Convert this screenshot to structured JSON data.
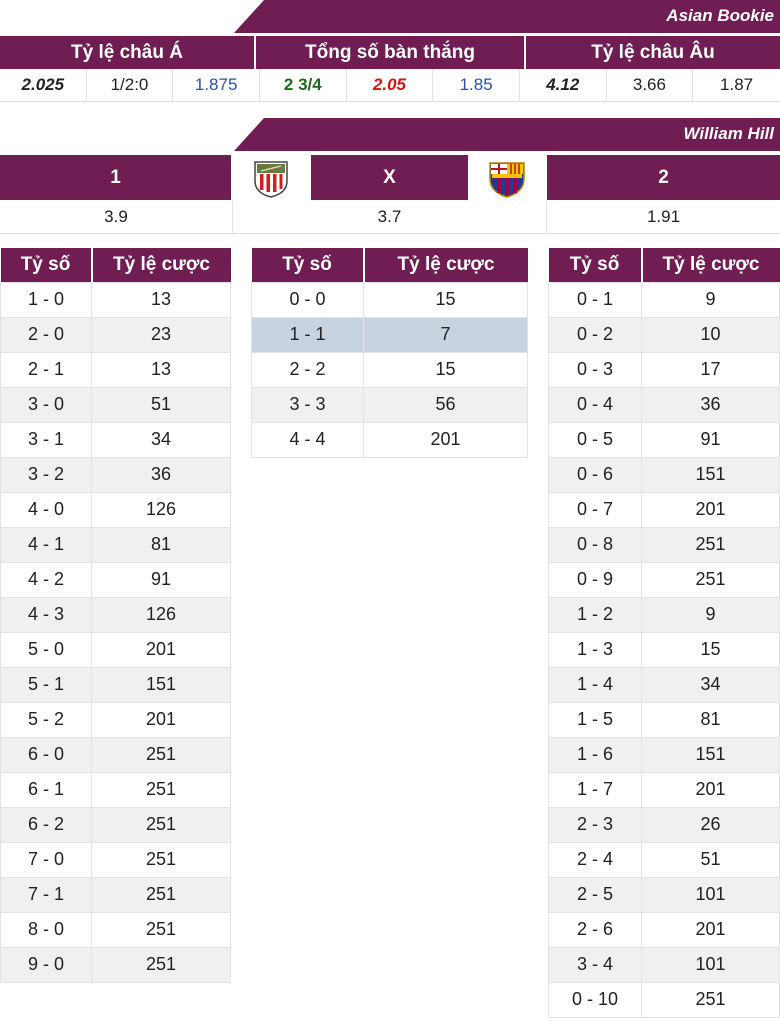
{
  "asian_bookie": {
    "name": "Asian Bookie",
    "headers": [
      "Tỷ lệ châu Á",
      "Tổng số bàn thắng",
      "Tỷ lệ châu Âu"
    ],
    "values": [
      "2.025",
      "1/2:0",
      "1.875",
      "2 3/4",
      "2.05",
      "1.85",
      "4.12",
      "3.66",
      "1.87"
    ]
  },
  "william_hill": {
    "name": "William Hill",
    "home_label": "1",
    "draw_label": "X",
    "away_label": "2",
    "home_logo": "athletic-bilbao-logo",
    "away_logo": "fc-barcelona-logo",
    "home_odds": "3.9",
    "draw_odds": "3.7",
    "away_odds": "1.91"
  },
  "columns": {
    "score": "Tỷ số",
    "odds": "Tỷ lệ cược"
  },
  "home_wins": [
    [
      "1 - 0",
      "13"
    ],
    [
      "2 - 0",
      "23"
    ],
    [
      "2 - 1",
      "13"
    ],
    [
      "3 - 0",
      "51"
    ],
    [
      "3 - 1",
      "34"
    ],
    [
      "3 - 2",
      "36"
    ],
    [
      "4 - 0",
      "126"
    ],
    [
      "4 - 1",
      "81"
    ],
    [
      "4 - 2",
      "91"
    ],
    [
      "4 - 3",
      "126"
    ],
    [
      "5 - 0",
      "201"
    ],
    [
      "5 - 1",
      "151"
    ],
    [
      "5 - 2",
      "201"
    ],
    [
      "6 - 0",
      "251"
    ],
    [
      "6 - 1",
      "251"
    ],
    [
      "6 - 2",
      "251"
    ],
    [
      "7 - 0",
      "251"
    ],
    [
      "7 - 1",
      "251"
    ],
    [
      "8 - 0",
      "251"
    ],
    [
      "9 - 0",
      "251"
    ]
  ],
  "draws": [
    [
      "0 - 0",
      "15"
    ],
    [
      "1 - 1",
      "7"
    ],
    [
      "2 - 2",
      "15"
    ],
    [
      "3 - 3",
      "56"
    ],
    [
      "4 - 4",
      "201"
    ]
  ],
  "highlighted_draw": "1 - 1",
  "away_wins": [
    [
      "0 - 1",
      "9"
    ],
    [
      "0 - 2",
      "10"
    ],
    [
      "0 - 3",
      "17"
    ],
    [
      "0 - 4",
      "36"
    ],
    [
      "0 - 5",
      "91"
    ],
    [
      "0 - 6",
      "151"
    ],
    [
      "0 - 7",
      "201"
    ],
    [
      "0 - 8",
      "251"
    ],
    [
      "0 - 9",
      "251"
    ],
    [
      "1 - 2",
      "9"
    ],
    [
      "1 - 3",
      "15"
    ],
    [
      "1 - 4",
      "34"
    ],
    [
      "1 - 5",
      "81"
    ],
    [
      "1 - 6",
      "151"
    ],
    [
      "1 - 7",
      "201"
    ],
    [
      "2 - 3",
      "26"
    ],
    [
      "2 - 4",
      "51"
    ],
    [
      "2 - 5",
      "101"
    ],
    [
      "2 - 6",
      "201"
    ],
    [
      "3 - 4",
      "101"
    ],
    [
      "0 - 10",
      "251"
    ]
  ],
  "colors": {
    "header_bg": "#6f1d52",
    "alt_row": "#f0f0f0",
    "highlight_row": "#c7d4df"
  }
}
